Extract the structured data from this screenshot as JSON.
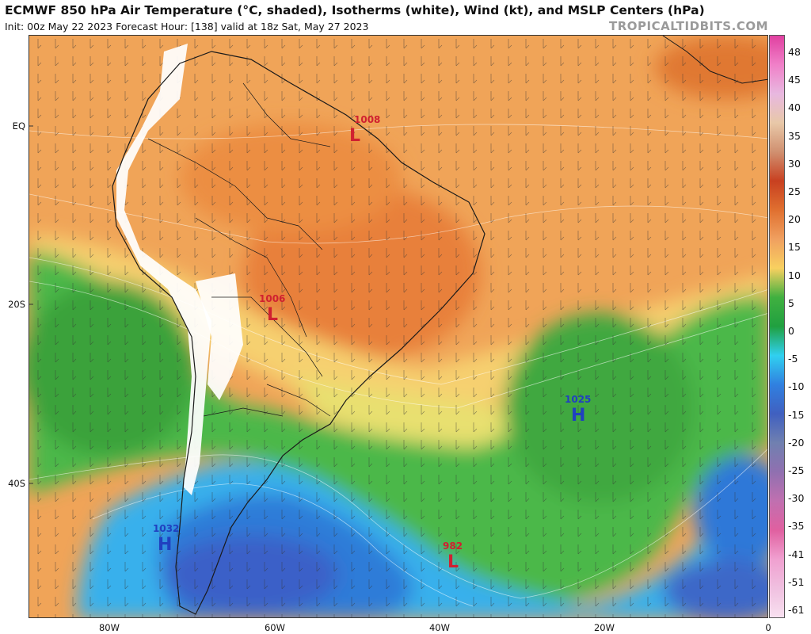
{
  "header": {
    "title": "ECMWF 850 hPa Air Temperature (°C, shaded), Isotherms (white), Wind (kt), and MSLP Centers (hPa)",
    "subtitle": "Init: 00z May 22 2023   Forecast Hour: [138]   valid at 18z Sat, May 27 2023",
    "brand": "TROPICALTIDBITS.COM"
  },
  "axes": {
    "lat_labels": [
      "EQ",
      "20S",
      "40S"
    ],
    "lon_labels": [
      "80W",
      "60W",
      "40W",
      "20W",
      "0"
    ]
  },
  "colorbar": {
    "labels": [
      "48",
      "45",
      "40",
      "35",
      "30",
      "25",
      "20",
      "15",
      "10",
      "5",
      "0",
      "-5",
      "-10",
      "-15",
      "-20",
      "-25",
      "-30",
      "-35",
      "-41",
      "-51",
      "-61"
    ],
    "colors": [
      "#e040a0",
      "#f080c8",
      "#e8b8e0",
      "#e8c8a8",
      "#d09070",
      "#c84020",
      "#e07030",
      "#f0a060",
      "#f8d060",
      "#40b040",
      "#20a040",
      "#30d0f0",
      "#3080e0",
      "#4060c0",
      "#7080b0",
      "#9070b0",
      "#c070b0",
      "#e060a0",
      "#f0a0d0",
      "#f0c0e0",
      "#f8e0f0"
    ]
  },
  "pressure_centers": [
    {
      "type": "L",
      "value": "1008",
      "color": "#d02030"
    },
    {
      "type": "L",
      "value": "1006",
      "color": "#d02030"
    },
    {
      "type": "H",
      "value": "1025",
      "color": "#2040c0"
    },
    {
      "type": "L",
      "value": "982",
      "color": "#d02030"
    },
    {
      "type": "H",
      "value": "1032",
      "color": "#2040c0"
    }
  ]
}
